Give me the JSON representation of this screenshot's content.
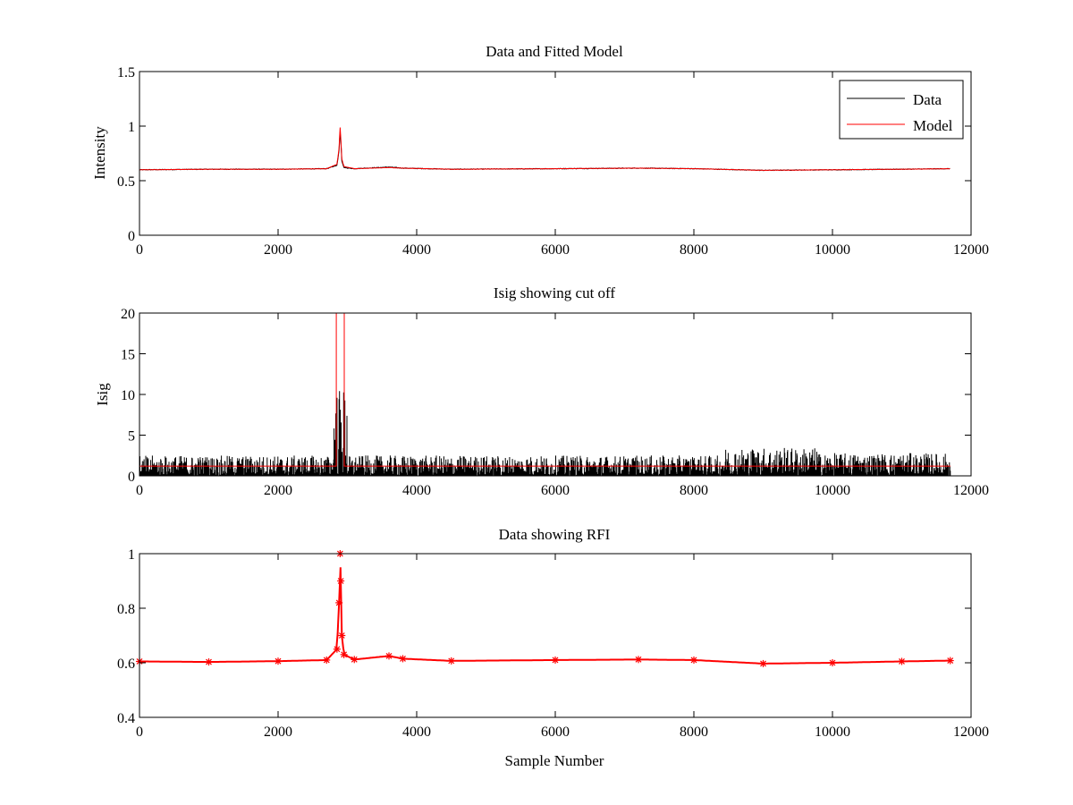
{
  "chart_data": [
    {
      "type": "line",
      "title": "Data and Fitted Model",
      "xlabel": "",
      "ylabel": "Intensity",
      "xlim": [
        0,
        12000
      ],
      "ylim": [
        0,
        1.5
      ],
      "xticks": [
        "0",
        "2000",
        "4000",
        "6000",
        "8000",
        "10000",
        "12000"
      ],
      "yticks": [
        "0",
        "0.5",
        "1",
        "1.5"
      ],
      "grid": false,
      "legend_position": "top-right",
      "series": [
        {
          "name": "Data",
          "color": "#000000",
          "x": [
            0,
            1000,
            2000,
            2700,
            2850,
            2880,
            2895,
            2905,
            2920,
            2950,
            3100,
            3600,
            3800,
            4500,
            6000,
            7200,
            8000,
            9000,
            10000,
            11000,
            11700
          ],
          "y": [
            0.6,
            0.605,
            0.605,
            0.61,
            0.64,
            0.78,
            0.95,
            0.86,
            0.68,
            0.62,
            0.61,
            0.625,
            0.615,
            0.605,
            0.61,
            0.615,
            0.61,
            0.595,
            0.6,
            0.605,
            0.61
          ]
        },
        {
          "name": "Model",
          "color": "#ff0000",
          "x": [
            0,
            1000,
            2000,
            2700,
            2850,
            2880,
            2895,
            2905,
            2920,
            2950,
            3100,
            3600,
            3800,
            4500,
            6000,
            7200,
            8000,
            9000,
            10000,
            11000,
            11700
          ],
          "y": [
            0.6,
            0.605,
            0.605,
            0.61,
            0.65,
            0.8,
            1.0,
            0.88,
            0.7,
            0.63,
            0.61,
            0.62,
            0.615,
            0.605,
            0.61,
            0.615,
            0.61,
            0.595,
            0.6,
            0.605,
            0.61
          ]
        }
      ]
    },
    {
      "type": "line",
      "title": "Isig showing cut off",
      "xlabel": "",
      "ylabel": "Isig",
      "xlim": [
        0,
        12000
      ],
      "ylim": [
        0,
        20
      ],
      "xticks": [
        "0",
        "2000",
        "4000",
        "6000",
        "8000",
        "10000",
        "12000"
      ],
      "yticks": [
        "0",
        "5",
        "10",
        "15",
        "20"
      ],
      "grid": false,
      "noise": {
        "color": "#000000",
        "x_range": [
          0,
          11700
        ],
        "segments": [
          {
            "x": [
              0,
              2800
            ],
            "max": 2.5
          },
          {
            "x": [
              2800,
              3000
            ],
            "max": 11
          },
          {
            "x": [
              3000,
              8400
            ],
            "max": 2.5
          },
          {
            "x": [
              8400,
              9800
            ],
            "max": 3.5
          },
          {
            "x": [
              9800,
              11700
            ],
            "max": 2.8
          }
        ]
      },
      "series": [
        {
          "color": "#ff0000",
          "x": [
            0,
            2840,
            2840,
            2955,
            2955,
            11700
          ],
          "y": [
            1.2,
            1.2,
            20,
            20,
            1.2,
            1.2
          ]
        }
      ]
    },
    {
      "type": "scatter",
      "title": "Data showing RFI",
      "xlabel": "Sample Number",
      "ylabel": "",
      "xlim": [
        0,
        12000
      ],
      "ylim": [
        0.4,
        1.0
      ],
      "xticks": [
        "0",
        "2000",
        "4000",
        "6000",
        "8000",
        "10000",
        "12000"
      ],
      "yticks": [
        "0.4",
        "0.6",
        "0.8",
        "1"
      ],
      "grid": false,
      "series": [
        {
          "color": "#ff0000",
          "marker": "asterisk",
          "x": [
            0,
            1000,
            2000,
            2700,
            2850,
            2880,
            2895,
            2905,
            2920,
            2950,
            3100,
            3600,
            3800,
            4500,
            6000,
            7200,
            8000,
            9000,
            10000,
            11000,
            11700
          ],
          "y": [
            0.605,
            0.603,
            0.606,
            0.61,
            0.65,
            0.82,
            1.0,
            0.9,
            0.7,
            0.63,
            0.612,
            0.625,
            0.615,
            0.607,
            0.61,
            0.612,
            0.61,
            0.597,
            0.6,
            0.605,
            0.608
          ]
        }
      ]
    }
  ]
}
